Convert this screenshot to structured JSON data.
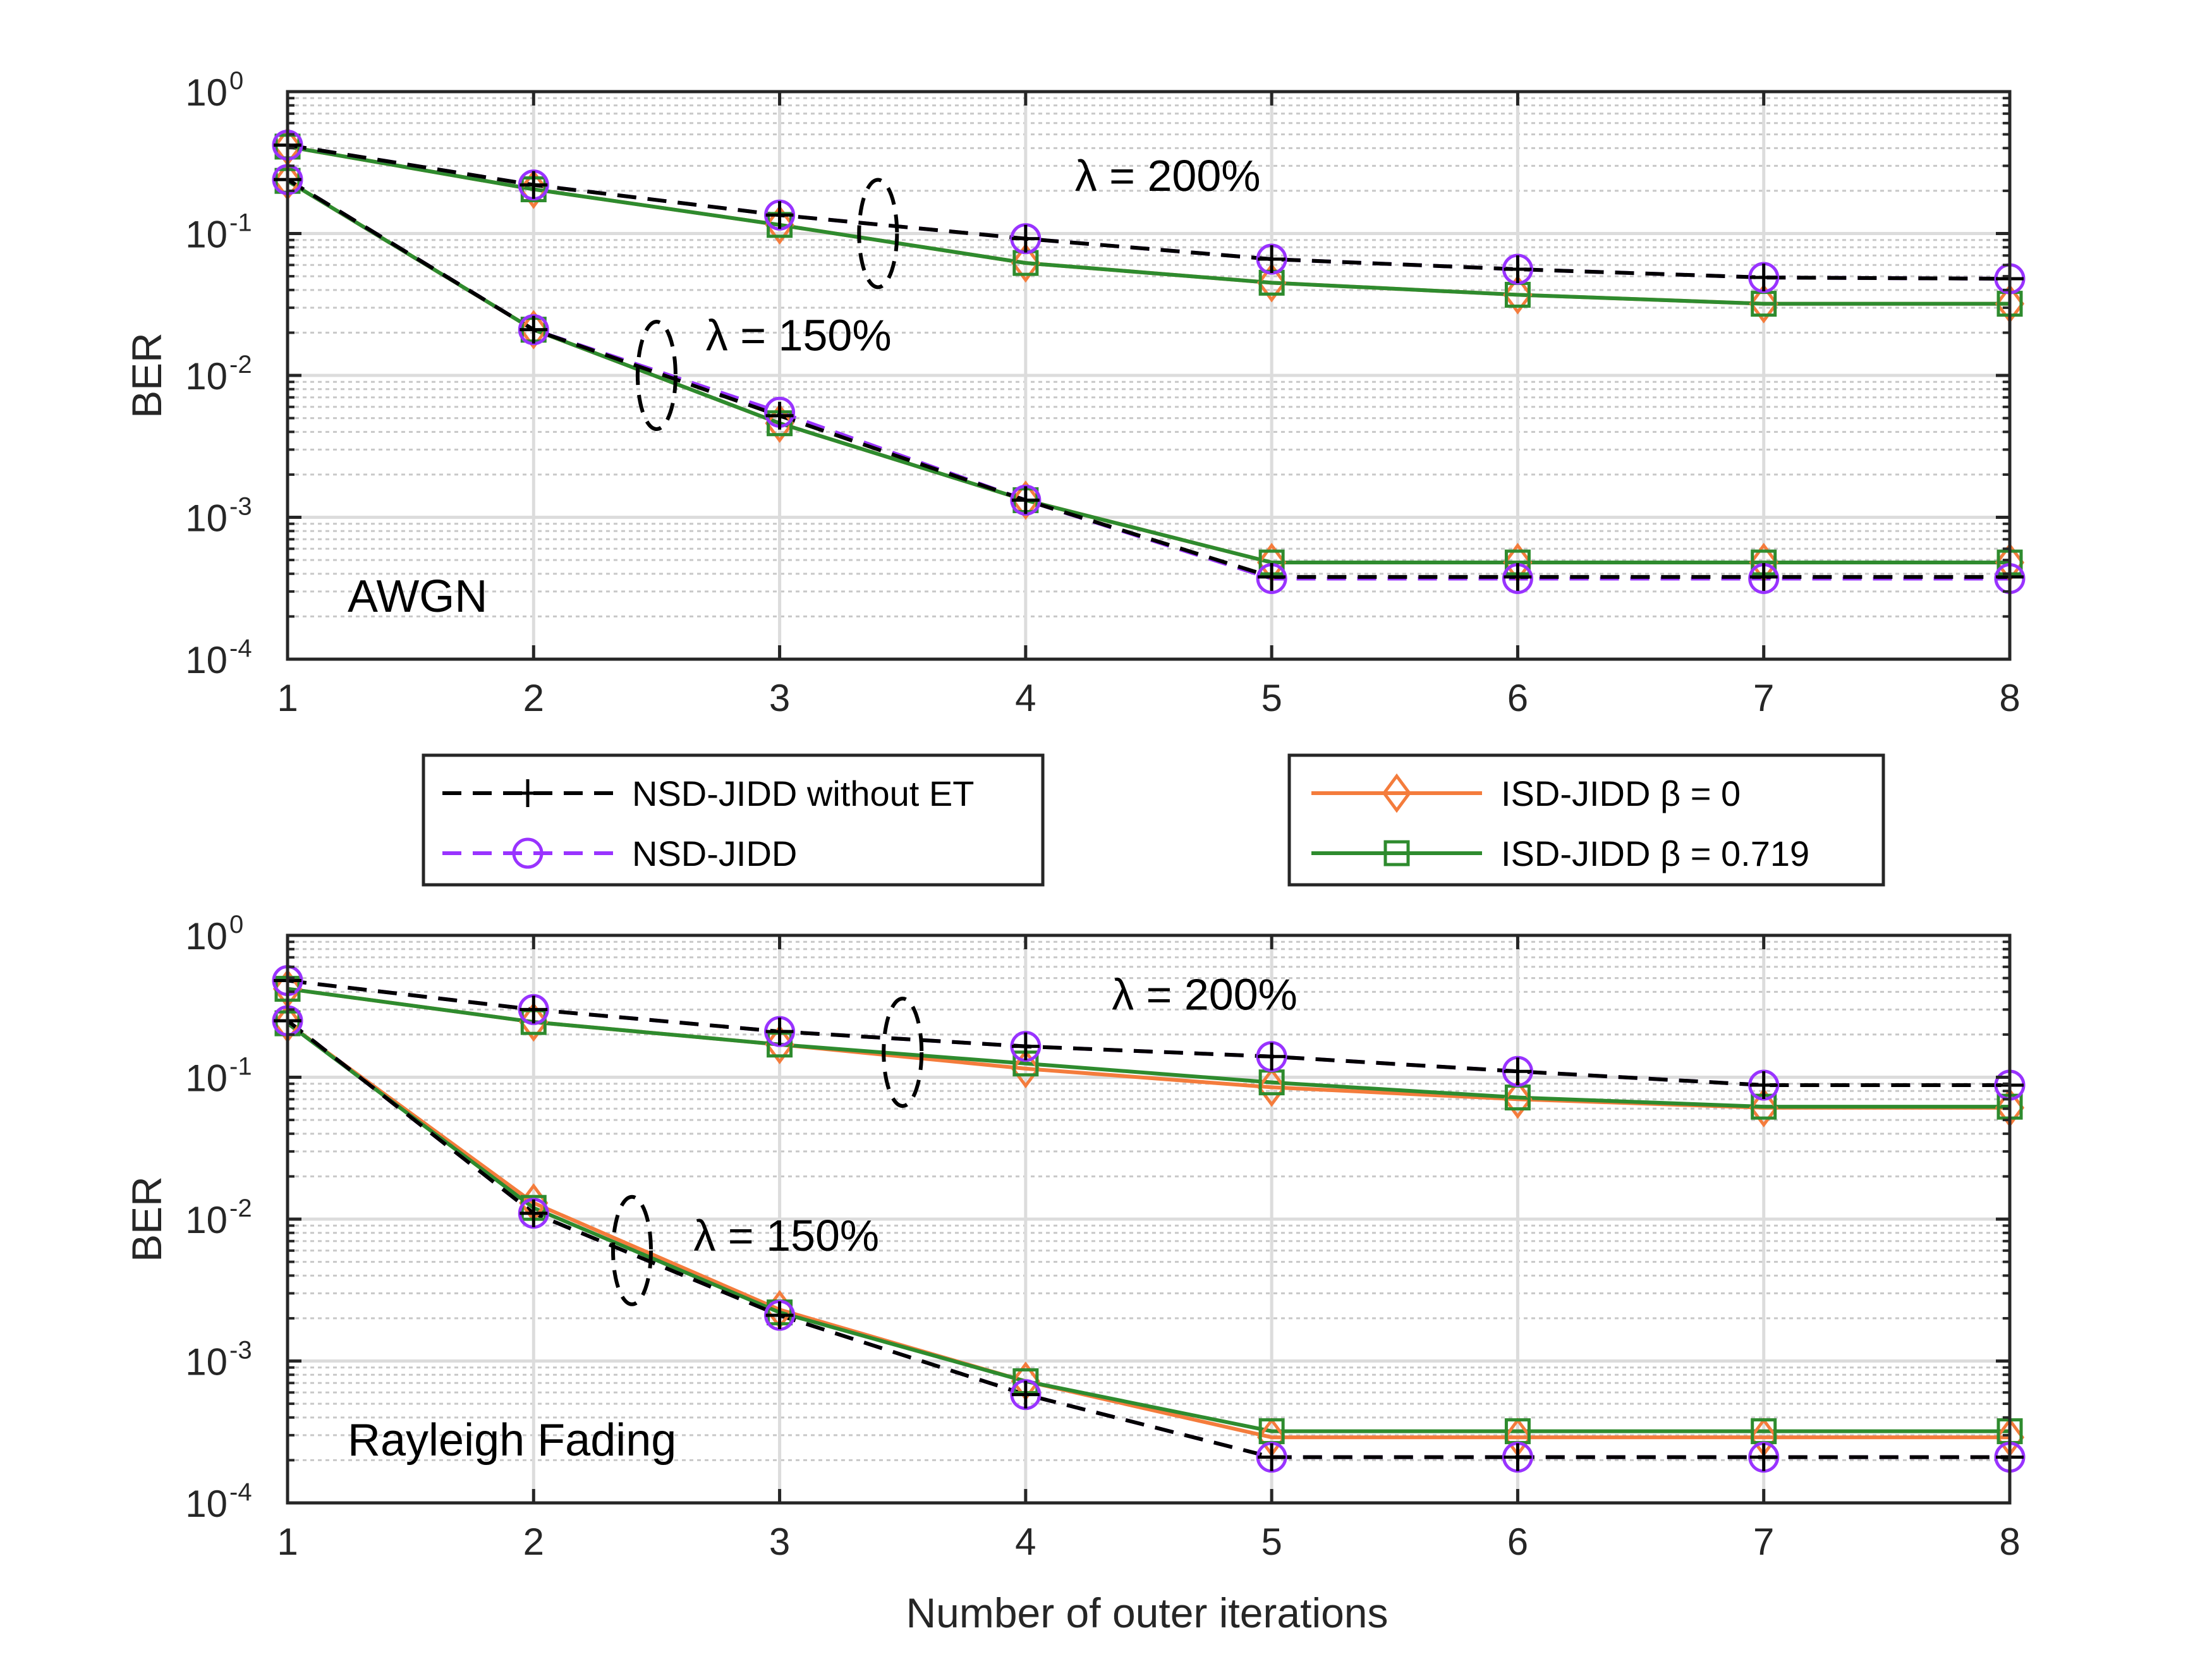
{
  "colors": {
    "nsd_no_et": "#000000",
    "nsd": "#9933ff",
    "isd_b0": "#f47c3c",
    "isd_b719": "#2e8b2e"
  },
  "chart_data": [
    {
      "type": "line",
      "panel": "top",
      "scale": "log",
      "channel_label": "AWGN",
      "xlabel": "",
      "ylabel": "BER",
      "xlim": [
        1,
        8
      ],
      "ylim": [
        0.0001,
        1
      ],
      "x": [
        1,
        2,
        3,
        4,
        5,
        6,
        7,
        8
      ],
      "xticks": [
        "1",
        "2",
        "3",
        "4",
        "5",
        "6",
        "7",
        "8"
      ],
      "yticks": [
        {
          "base": "10",
          "exp": "0"
        },
        {
          "base": "10",
          "exp": "-1"
        },
        {
          "base": "10",
          "exp": "-2"
        },
        {
          "base": "10",
          "exp": "-3"
        },
        {
          "base": "10",
          "exp": "-4"
        }
      ],
      "annotations": [
        {
          "text": "λ = 200%",
          "x": 4.2,
          "y": 0.2,
          "ellipse": {
            "x": 3.4,
            "y": 0.1
          }
        },
        {
          "text": "λ = 150%",
          "x": 2.7,
          "y": 0.015,
          "ellipse": {
            "x": 2.5,
            "y": 0.01
          }
        }
      ],
      "series": [
        {
          "name": "NSD-JIDD without ET",
          "lambda": "200%",
          "key": "nsd_no_et",
          "values": [
            0.42,
            0.22,
            0.135,
            0.092,
            0.066,
            0.056,
            0.049,
            0.048
          ]
        },
        {
          "name": "NSD-JIDD",
          "lambda": "200%",
          "key": "nsd",
          "values": [
            0.42,
            0.22,
            0.135,
            0.092,
            0.066,
            0.056,
            0.049,
            0.048
          ]
        },
        {
          "name": "ISD-JIDD β = 0",
          "lambda": "200%",
          "key": "isd_b0",
          "values": [
            0.41,
            0.205,
            0.115,
            0.062,
            0.045,
            0.037,
            0.032,
            0.032
          ]
        },
        {
          "name": "ISD-JIDD β = 0.719",
          "lambda": "200%",
          "key": "isd_b719",
          "values": [
            0.41,
            0.205,
            0.115,
            0.062,
            0.045,
            0.037,
            0.032,
            0.032
          ]
        },
        {
          "name": "NSD-JIDD without ET",
          "lambda": "150%",
          "key": "nsd_no_et",
          "values": [
            0.24,
            0.021,
            0.0052,
            0.00132,
            0.00038,
            0.00038,
            0.00038,
            0.00038
          ]
        },
        {
          "name": "NSD-JIDD",
          "lambda": "150%",
          "key": "nsd",
          "values": [
            0.24,
            0.021,
            0.0055,
            0.00132,
            0.00037,
            0.00037,
            0.00037,
            0.00037
          ]
        },
        {
          "name": "ISD-JIDD β = 0",
          "lambda": "150%",
          "key": "isd_b0",
          "values": [
            0.235,
            0.021,
            0.0046,
            0.00132,
            0.00048,
            0.00048,
            0.00048,
            0.00048
          ]
        },
        {
          "name": "ISD-JIDD β = 0.719",
          "lambda": "150%",
          "key": "isd_b719",
          "values": [
            0.235,
            0.021,
            0.0046,
            0.00132,
            0.00048,
            0.00048,
            0.00048,
            0.00048
          ]
        }
      ]
    },
    {
      "type": "line",
      "panel": "bottom",
      "scale": "log",
      "channel_label": "Rayleigh Fading",
      "xlabel": "Number of outer iterations",
      "ylabel": "BER",
      "xlim": [
        1,
        8
      ],
      "ylim": [
        0.0001,
        1
      ],
      "x": [
        1,
        2,
        3,
        4,
        5,
        6,
        7,
        8
      ],
      "xticks": [
        "1",
        "2",
        "3",
        "4",
        "5",
        "6",
        "7",
        "8"
      ],
      "yticks": [
        {
          "base": "10",
          "exp": "0"
        },
        {
          "base": "10",
          "exp": "-1"
        },
        {
          "base": "10",
          "exp": "-2"
        },
        {
          "base": "10",
          "exp": "-3"
        },
        {
          "base": "10",
          "exp": "-4"
        }
      ],
      "annotations": [
        {
          "text": "λ = 200%",
          "x": 4.35,
          "y": 0.3,
          "ellipse": {
            "x": 3.5,
            "y": 0.15
          }
        },
        {
          "text": "λ = 150%",
          "x": 2.65,
          "y": 0.006,
          "ellipse": {
            "x": 2.4,
            "y": 0.006
          }
        }
      ],
      "series": [
        {
          "name": "NSD-JIDD without ET",
          "lambda": "200%",
          "key": "nsd_no_et",
          "values": [
            0.48,
            0.3,
            0.21,
            0.165,
            0.14,
            0.11,
            0.088,
            0.088
          ]
        },
        {
          "name": "NSD-JIDD",
          "lambda": "200%",
          "key": "nsd",
          "values": [
            0.48,
            0.3,
            0.21,
            0.165,
            0.14,
            0.11,
            0.088,
            0.088
          ]
        },
        {
          "name": "ISD-JIDD β = 0",
          "lambda": "200%",
          "key": "isd_b0",
          "values": [
            0.42,
            0.245,
            0.17,
            0.115,
            0.085,
            0.07,
            0.061,
            0.061
          ]
        },
        {
          "name": "ISD-JIDD β = 0.719",
          "lambda": "200%",
          "key": "isd_b719",
          "values": [
            0.42,
            0.245,
            0.17,
            0.125,
            0.092,
            0.072,
            0.062,
            0.062
          ]
        },
        {
          "name": "NSD-JIDD without ET",
          "lambda": "150%",
          "key": "nsd_no_et",
          "values": [
            0.25,
            0.011,
            0.0021,
            0.00058,
            0.00021,
            0.00021,
            0.00021,
            0.00021
          ]
        },
        {
          "name": "NSD-JIDD",
          "lambda": "150%",
          "key": "nsd",
          "values": [
            0.25,
            0.011,
            0.0021,
            0.00058,
            0.00021,
            0.00021,
            0.00021,
            0.00021
          ]
        },
        {
          "name": "ISD-JIDD β = 0",
          "lambda": "150%",
          "key": "isd_b0",
          "values": [
            0.24,
            0.013,
            0.0023,
            0.00072,
            0.00029,
            0.00029,
            0.00029,
            0.00029
          ]
        },
        {
          "name": "ISD-JIDD β = 0.719",
          "lambda": "150%",
          "key": "isd_b719",
          "values": [
            0.24,
            0.012,
            0.0022,
            0.00072,
            0.00032,
            0.00032,
            0.00032,
            0.00032
          ]
        }
      ]
    }
  ],
  "legend": {
    "left": [
      {
        "label": "NSD-JIDD without ET",
        "key": "nsd_no_et"
      },
      {
        "label": "NSD-JIDD",
        "key": "nsd"
      }
    ],
    "right": [
      {
        "label": "ISD-JIDD β = 0",
        "key": "isd_b0"
      },
      {
        "label": "ISD-JIDD β = 0.719",
        "key": "isd_b719"
      }
    ]
  }
}
